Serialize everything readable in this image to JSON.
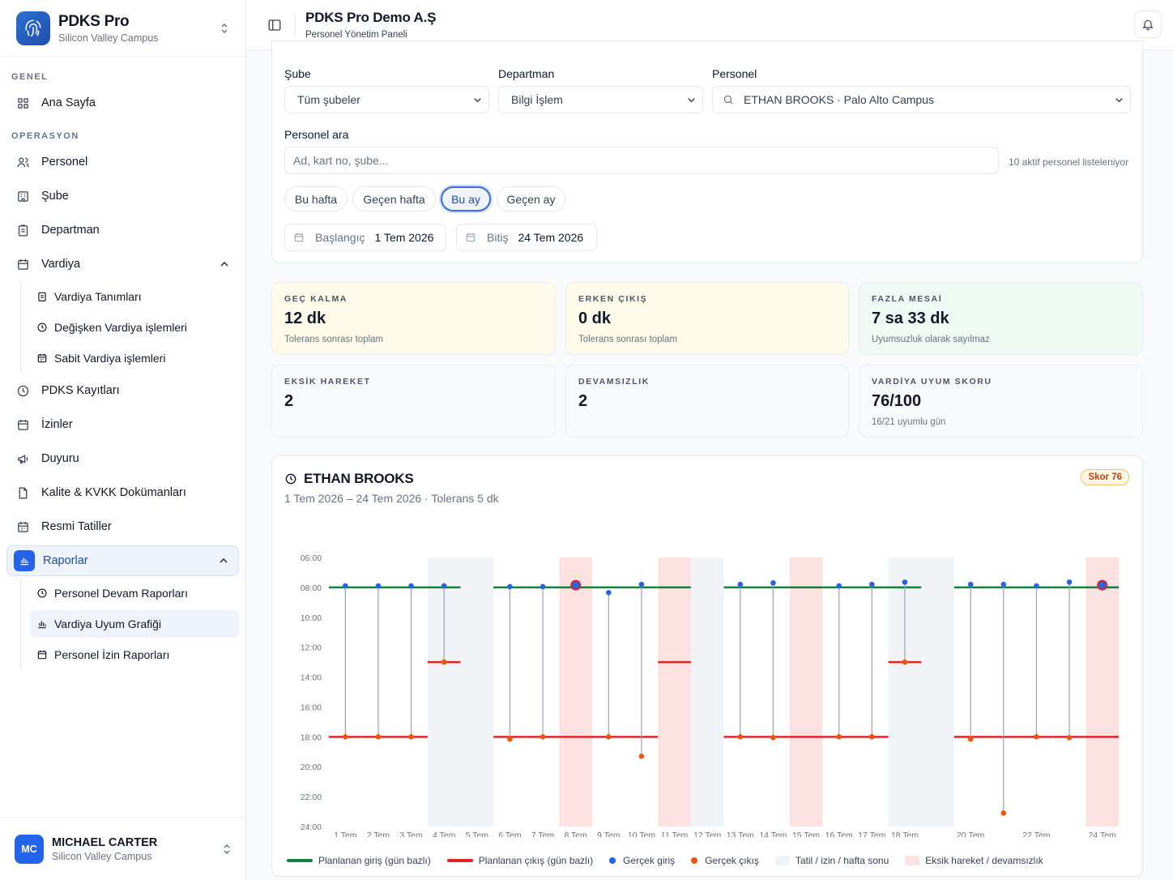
{
  "app": {
    "name": "PDKS Pro",
    "campus": "Silicon Valley Campus"
  },
  "header": {
    "title": "PDKS Pro Demo A.Ş",
    "subtitle": "Personel Yönetim Paneli"
  },
  "nav": {
    "sections": {
      "general": "GENEL",
      "operations": "OPERASYON"
    },
    "home": "Ana Sayfa",
    "personel": "Personel",
    "sube": "Şube",
    "departman": "Departman",
    "vardiya": "Vardiya",
    "vardiya_sub": [
      "Vardiya Tanımları",
      "Değişken Vardiya işlemleri",
      "Sabit Vardiya işlemleri"
    ],
    "pdks": "PDKS Kayıtları",
    "izinler": "İzinler",
    "duyuru": "Duyuru",
    "kalite": "Kalite & KVKK Dokümanları",
    "tatiller": "Resmi Tatiller",
    "raporlar": "Raporlar",
    "raporlar_sub": [
      "Personel Devam Raporları",
      "Vardiya Uyum Grafiği",
      "Personel İzin Raporları"
    ]
  },
  "user": {
    "initials": "MC",
    "name": "MICHAEL CARTER",
    "campus": "Silicon Valley Campus"
  },
  "filters": {
    "sube_label": "Şube",
    "sube_value": "Tüm şubeler",
    "departman_label": "Departman",
    "departman_value": "Bilgi İşlem",
    "personel_label": "Personel",
    "personel_value": "ETHAN BROOKS · Palo Alto Campus",
    "search_label": "Personel ara",
    "search_placeholder": "Ad, kart no, şube...",
    "search_hint": "10 aktif personel listeleniyor",
    "chips": [
      "Bu hafta",
      "Geçen hafta",
      "Bu ay",
      "Geçen ay"
    ],
    "active_chip": "Bu ay",
    "start_label": "Başlangıç",
    "start_value": "1 Tem 2026",
    "end_label": "Bitiş",
    "end_value": "24 Tem 2026"
  },
  "stats": [
    {
      "label": "GEÇ KALMA",
      "value": "12 dk",
      "sub": "Tolerans sonrası toplam",
      "color": "#fffbeb"
    },
    {
      "label": "ERKEN ÇIKIŞ",
      "value": "0 dk",
      "sub": "Tolerans sonrası toplam",
      "color": "#fffbeb"
    },
    {
      "label": "FAZLA MESAİ",
      "value": "7 sa 33 dk",
      "sub": "Uyumsuzluk olarak sayılmaz",
      "color": "#f0faf4"
    },
    {
      "label": "EKSİK HAREKET",
      "value": "2",
      "sub": "",
      "color": "#f8fafc"
    },
    {
      "label": "DEVAMSIZLIK",
      "value": "2",
      "sub": "",
      "color": "#f8fafc"
    },
    {
      "label": "VARDİYA UYUM SKORU",
      "value": "76/100",
      "sub": "16/21 uyumlu gün",
      "color": "#f8fafc"
    }
  ],
  "chart_panel": {
    "title": "ETHAN BROOKS",
    "subtitle": "1 Tem 2026 – 24 Tem 2026 · Tolerans 5 dk",
    "badge": "Skor 76"
  },
  "chart_data": {
    "type": "scatter",
    "y_ticks": [
      "06:00",
      "08:00",
      "10:00",
      "12:00",
      "14:00",
      "16:00",
      "18:00",
      "20:00",
      "22:00",
      "24:00"
    ],
    "ylim": [
      6,
      24
    ],
    "y_inverted": true,
    "categories": [
      "1 Tem",
      "2 Tem",
      "3 Tem",
      "4 Tem",
      "5 Tem",
      "6 Tem",
      "7 Tem",
      "8 Tem",
      "9 Tem",
      "10 Tem",
      "11 Tem",
      "12 Tem",
      "13 Tem",
      "14 Tem",
      "15 Tem",
      "16 Tem",
      "17 Tem",
      "18 Tem",
      "19 Tem",
      "20 Tem",
      "21 Tem",
      "22 Tem",
      "23 Tem",
      "24 Tem"
    ],
    "x_labels_shown": [
      "1 Tem",
      "2 Tem",
      "3 Tem",
      "4 Tem",
      "5 Tem",
      "6 Tem",
      "7 Tem",
      "8 Tem",
      "9 Tem",
      "10 Tem",
      "11 Tem",
      "12 Tem",
      "13 Tem",
      "14 Tem",
      "15 Tem",
      "16 Tem",
      "17 Tem",
      "18 Tem",
      "20 Tem",
      "22 Tem",
      "24 Tem"
    ],
    "off_days": [
      "4 Tem",
      "5 Tem",
      "11 Tem",
      "12 Tem",
      "18 Tem",
      "19 Tem",
      "24 Tem"
    ],
    "weekend_days": [
      "5 Tem",
      "12 Tem",
      "19 Tem"
    ],
    "missing_days": [
      "8 Tem",
      "11 Tem",
      "15 Tem",
      "24 Tem"
    ],
    "planned_in": [
      8,
      8,
      8,
      8,
      null,
      8,
      8,
      8,
      8,
      8,
      8,
      null,
      8,
      8,
      8,
      8,
      8,
      8,
      null,
      8,
      8,
      8,
      8,
      8
    ],
    "planned_out": [
      18,
      18,
      18,
      13,
      null,
      18,
      18,
      18,
      18,
      18,
      13,
      null,
      18,
      18,
      18,
      18,
      18,
      13,
      null,
      18,
      18,
      18,
      18,
      18
    ],
    "actual_in": [
      7.9,
      7.9,
      7.9,
      7.9,
      null,
      7.95,
      7.95,
      7.85,
      8.35,
      7.8,
      null,
      null,
      7.8,
      7.7,
      null,
      7.9,
      7.8,
      7.65,
      null,
      7.8,
      7.8,
      7.9,
      7.65,
      7.85
    ],
    "actual_out": [
      18,
      18,
      18,
      13,
      null,
      18.15,
      18,
      null,
      18,
      19.3,
      null,
      null,
      18,
      18.05,
      null,
      18,
      18,
      13,
      null,
      18.15,
      23.1,
      18,
      18.05,
      null
    ],
    "series": [
      {
        "name": "Planlanan giriş (gün bazlı)",
        "color": "#15803d"
      },
      {
        "name": "Planlanan çıkış (gün bazlı)",
        "color": "#dc2626"
      },
      {
        "name": "Gerçek giriş",
        "color": "#2563eb"
      },
      {
        "name": "Gerçek çıkış",
        "color": "#ea580c"
      }
    ],
    "legend_extra": [
      {
        "name": "Tatil / izin / hafta sonu",
        "color": "#f1f3f6"
      },
      {
        "name": "Eksik hareket / devamsızlık",
        "color": "#fde2e2"
      }
    ]
  }
}
